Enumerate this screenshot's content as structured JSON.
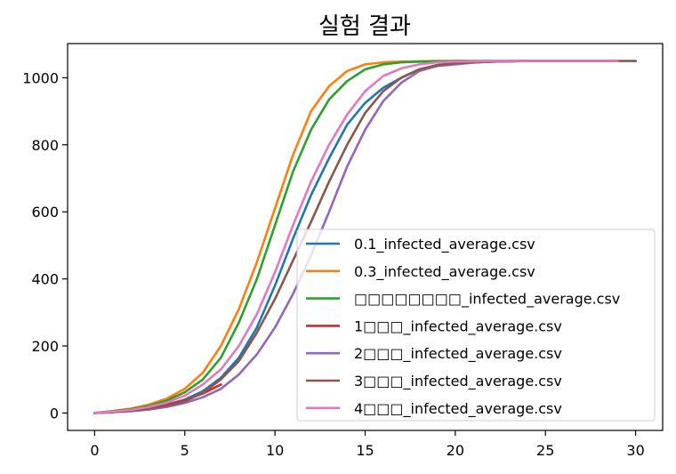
{
  "chart_data": {
    "type": "line",
    "title": "실험 결과",
    "xlabel": "",
    "ylabel": "",
    "xlim": [
      -1.5,
      31.5
    ],
    "ylim": [
      -52,
      1102
    ],
    "xticks": [
      0,
      5,
      10,
      15,
      20,
      25,
      30
    ],
    "yticks": [
      0,
      200,
      400,
      600,
      800,
      1000
    ],
    "grid": false,
    "legend_position": "lower-right",
    "series": [
      {
        "name": "0.1_infected_average.csv",
        "color": "#1f77b4",
        "x": [
          0,
          1,
          2,
          3,
          4,
          5,
          6,
          7,
          8,
          9,
          10,
          11,
          12,
          13,
          14,
          15,
          16,
          17,
          18,
          19,
          20,
          21,
          22,
          23,
          24,
          25,
          26,
          27,
          28,
          29
        ],
        "y": [
          0,
          3,
          7,
          13,
          25,
          40,
          65,
          105,
          165,
          255,
          380,
          520,
          650,
          760,
          860,
          925,
          970,
          1000,
          1025,
          1038,
          1043,
          1046,
          1048,
          1049,
          1050,
          1050,
          1050,
          1050,
          1050,
          1050
        ]
      },
      {
        "name": "0.3_infected_average.csv",
        "color": "#ff7f0e",
        "x": [
          0,
          1,
          2,
          3,
          4,
          5,
          6,
          7,
          8,
          9,
          10,
          11,
          12,
          13,
          14,
          15,
          16,
          17,
          18,
          19,
          20,
          21,
          22,
          23,
          24,
          25,
          26,
          27,
          28,
          29
        ],
        "y": [
          0,
          6,
          13,
          25,
          43,
          72,
          120,
          200,
          310,
          450,
          610,
          770,
          900,
          975,
          1020,
          1040,
          1046,
          1048,
          1049,
          1050,
          1050,
          1050,
          1050,
          1050,
          1050,
          1050,
          1050,
          1050,
          1050,
          1050
        ]
      },
      {
        "name": "□□□□□□□□_infected_average.csv",
        "color": "#2ca02c",
        "x": [
          0,
          1,
          2,
          3,
          4,
          5,
          6,
          7,
          8,
          9,
          10,
          11,
          12,
          13,
          14,
          15,
          16,
          17,
          18,
          19,
          20,
          21,
          22,
          23,
          24,
          25,
          26,
          27,
          28,
          29
        ],
        "y": [
          0,
          5,
          11,
          21,
          37,
          62,
          100,
          165,
          270,
          400,
          560,
          720,
          845,
          935,
          990,
          1025,
          1040,
          1046,
          1048,
          1049,
          1050,
          1050,
          1050,
          1050,
          1050,
          1050,
          1050,
          1050,
          1050,
          1050
        ]
      },
      {
        "name": "1□□□_infected_average.csv",
        "color": "#d62728",
        "x": [
          0,
          1,
          2,
          3,
          4,
          5,
          6,
          7
        ],
        "y": [
          0,
          3,
          7,
          14,
          24,
          38,
          58,
          85
        ]
      },
      {
        "name": "2□□□_infected_average.csv",
        "color": "#9467bd",
        "x": [
          0,
          1,
          2,
          3,
          4,
          5,
          6,
          7,
          8,
          9,
          10,
          11,
          12,
          13,
          14,
          15,
          16,
          17,
          18,
          19,
          20,
          21,
          22,
          23,
          24,
          25,
          26,
          27,
          28,
          29
        ],
        "y": [
          0,
          2,
          5,
          10,
          18,
          30,
          47,
          72,
          115,
          175,
          255,
          355,
          470,
          600,
          735,
          845,
          930,
          985,
          1020,
          1035,
          1040,
          1045,
          1048,
          1049,
          1050,
          1050,
          1050,
          1050,
          1050,
          1050
        ]
      },
      {
        "name": "3□□□_infected_average.csv",
        "color": "#8c564b",
        "x": [
          0,
          1,
          2,
          3,
          4,
          5,
          6,
          7,
          8,
          9,
          10,
          11,
          12,
          13,
          14,
          15,
          16,
          17,
          18,
          19,
          20,
          21,
          22,
          23,
          24,
          25,
          26,
          27,
          28,
          29,
          30
        ],
        "y": [
          0,
          3,
          7,
          13,
          22,
          35,
          60,
          100,
          155,
          240,
          340,
          455,
          570,
          690,
          800,
          895,
          960,
          1000,
          1025,
          1038,
          1043,
          1046,
          1048,
          1049,
          1050,
          1050,
          1050,
          1050,
          1050,
          1050,
          1050
        ]
      },
      {
        "name": "4□□□_infected_average.csv",
        "color": "#e377c2",
        "x": [
          0,
          1,
          2,
          3,
          4,
          5,
          6,
          7,
          8,
          9,
          10,
          11,
          12,
          13,
          14,
          15,
          16,
          17,
          18,
          19,
          20,
          21,
          22,
          23,
          24,
          25,
          26,
          27,
          28,
          29
        ],
        "y": [
          0,
          4,
          9,
          18,
          31,
          52,
          85,
          130,
          200,
          295,
          420,
          560,
          690,
          800,
          890,
          960,
          1005,
          1028,
          1040,
          1046,
          1048,
          1049,
          1050,
          1050,
          1050,
          1050,
          1050,
          1050,
          1050,
          1050
        ]
      }
    ]
  }
}
